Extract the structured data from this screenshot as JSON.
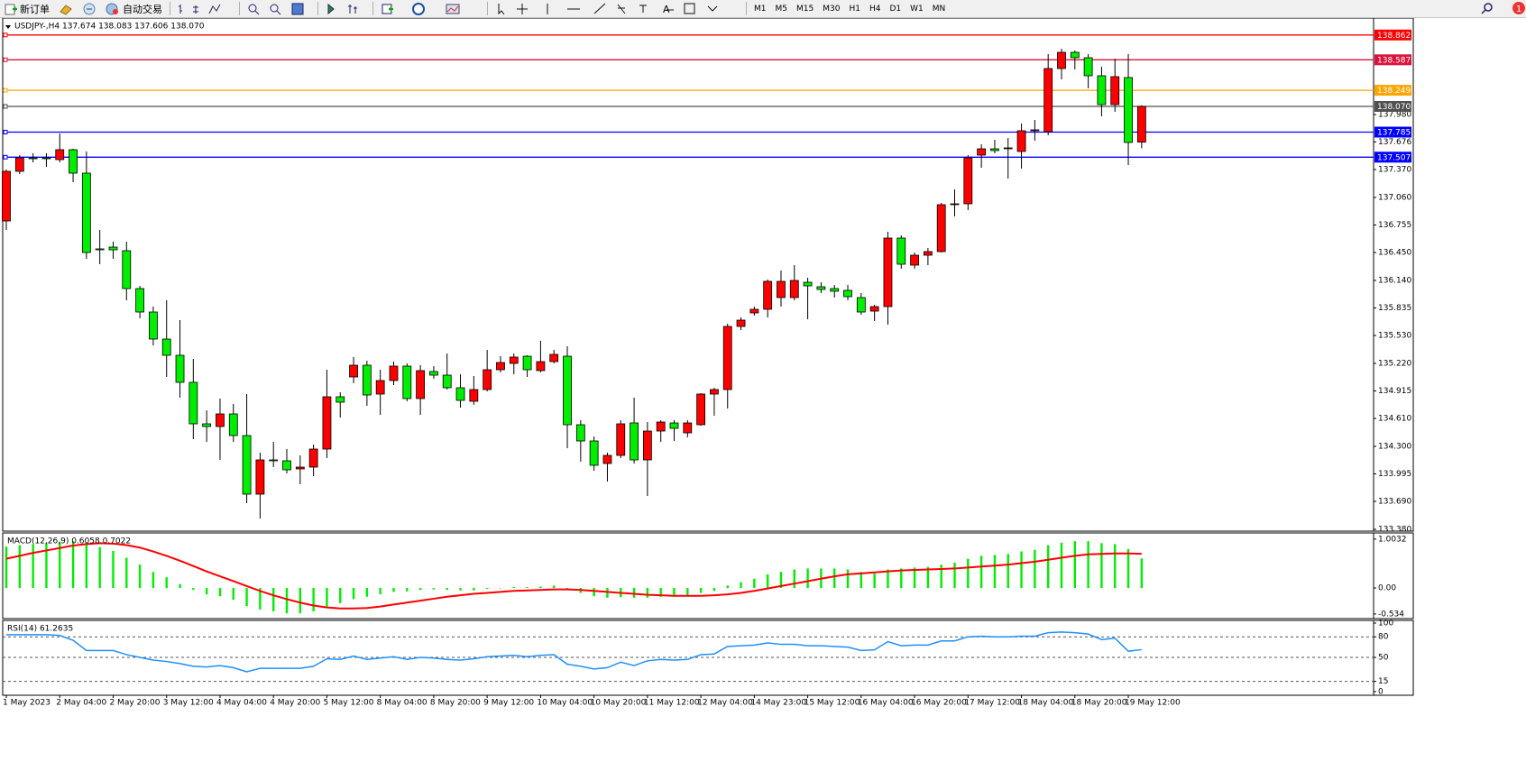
{
  "toolbar": {
    "buttons": [
      "新订单",
      "自动交易"
    ],
    "timeframes": [
      "M1",
      "M5",
      "M15",
      "M30",
      "H1",
      "H4",
      "D1",
      "W1",
      "MN"
    ],
    "badge": "1"
  },
  "chart_data": [
    {
      "type": "candlestick",
      "title": "USDJPY-,H4  137.674 138.083 137.606 138.070",
      "categories": [
        "1 May 2023",
        null,
        null,
        null,
        "2 May 04:00",
        null,
        null,
        null,
        "2 May 20:00",
        null,
        null,
        null,
        "3 May 12:00",
        null,
        null,
        null,
        "4 May 04:00",
        null,
        null,
        null,
        "4 May 20:00",
        null,
        null,
        null,
        "5 May 12:00",
        null,
        null,
        null,
        "8 May 04:00",
        null,
        null,
        null,
        "8 May 20:00",
        null,
        null,
        null,
        "9 May 12:00",
        null,
        null,
        null,
        "10 May 04:00",
        null,
        null,
        null,
        "10 May 20:00",
        null,
        null,
        null,
        "11 May 12:00",
        null,
        null,
        null,
        "12 May 04:00",
        null,
        null,
        null,
        "14 May 23:00",
        null,
        null,
        null,
        "15 May 12:00",
        null,
        null,
        null,
        "16 May 04:00",
        null,
        null,
        null,
        "16 May 20:00",
        null,
        null,
        null,
        "17 May 12:00",
        null,
        null,
        null,
        "18 May 04:00",
        null,
        null,
        null,
        "18 May 20:00",
        null,
        null,
        null,
        "19 May 12:00",
        null
      ],
      "open": [
        136.8,
        137.35,
        137.5,
        137.5,
        137.48,
        137.59,
        137.33,
        136.49,
        136.51,
        136.47,
        136.05,
        135.79,
        135.49,
        135.31,
        135.01,
        134.55,
        134.52,
        134.66,
        134.42,
        133.77,
        134.15,
        134.14,
        134.05,
        134.07,
        134.27,
        134.85,
        135.07,
        135.2,
        134.88,
        135.03,
        135.19,
        134.83,
        135.13,
        135.09,
        134.95,
        134.8,
        134.93,
        135.15,
        135.22,
        135.3,
        135.14,
        135.24,
        135.3,
        134.54,
        134.36,
        134.11,
        134.2,
        134.56,
        134.15,
        134.47,
        134.56,
        134.45,
        134.54,
        134.88,
        134.93,
        135.63,
        135.78,
        135.82,
        135.95,
        135.95,
        136.12,
        136.07,
        136.05,
        136.03,
        135.95,
        135.8,
        135.85,
        136.61,
        136.31,
        136.42,
        136.46,
        136.98,
        136.99,
        137.53,
        137.6,
        137.6,
        137.57,
        137.8,
        137.79,
        138.49,
        138.67,
        138.61,
        138.41,
        138.09,
        138.39,
        137.674
      ],
      "high": [
        137.37,
        137.53,
        137.55,
        137.55,
        137.77,
        137.6,
        137.57,
        136.7,
        136.57,
        136.57,
        136.08,
        135.85,
        135.92,
        135.7,
        135.27,
        134.7,
        134.83,
        134.77,
        134.88,
        134.23,
        134.35,
        134.27,
        134.2,
        134.32,
        135.15,
        134.9,
        135.29,
        135.25,
        135.15,
        135.24,
        135.22,
        135.2,
        135.19,
        135.33,
        135.1,
        135.08,
        135.37,
        135.3,
        135.33,
        135.31,
        135.47,
        135.37,
        135.41,
        134.59,
        134.41,
        134.23,
        134.59,
        134.84,
        134.57,
        134.59,
        134.59,
        134.59,
        134.89,
        134.95,
        135.66,
        135.73,
        135.85,
        136.15,
        136.25,
        136.31,
        136.17,
        136.12,
        136.09,
        136.09,
        136.0,
        135.87,
        136.68,
        136.64,
        136.45,
        136.5,
        137.0,
        137.15,
        137.53,
        137.65,
        137.7,
        137.72,
        137.88,
        137.92,
        138.65,
        138.71,
        138.69,
        138.65,
        138.51,
        138.6,
        138.65,
        138.083
      ],
      "low": [
        136.7,
        137.32,
        137.45,
        137.4,
        137.45,
        137.23,
        136.38,
        136.32,
        136.38,
        135.92,
        135.72,
        135.42,
        135.07,
        134.84,
        134.38,
        134.35,
        134.15,
        134.35,
        133.67,
        133.5,
        134.07,
        134.0,
        133.88,
        133.97,
        134.17,
        134.62,
        135.0,
        134.75,
        134.65,
        134.98,
        134.8,
        134.65,
        135.05,
        134.93,
        134.73,
        134.76,
        134.91,
        135.12,
        135.1,
        135.07,
        135.12,
        135.22,
        134.28,
        134.13,
        134.03,
        133.91,
        134.17,
        134.11,
        133.75,
        134.35,
        134.36,
        134.4,
        134.53,
        134.64,
        134.72,
        135.59,
        135.75,
        135.73,
        135.85,
        135.92,
        135.71,
        136.0,
        135.95,
        135.92,
        135.76,
        135.69,
        135.65,
        136.27,
        136.27,
        136.31,
        136.45,
        136.85,
        136.92,
        137.39,
        137.55,
        137.27,
        137.38,
        137.69,
        137.75,
        138.37,
        138.48,
        138.27,
        137.96,
        138.01,
        137.42,
        137.606
      ],
      "close": [
        137.35,
        137.5,
        137.49,
        137.5,
        137.59,
        137.33,
        136.45,
        136.48,
        136.48,
        136.05,
        135.79,
        135.49,
        135.31,
        135.01,
        134.55,
        134.52,
        134.66,
        134.42,
        133.77,
        134.15,
        134.14,
        134.04,
        134.07,
        134.27,
        134.85,
        134.79,
        135.2,
        134.87,
        135.03,
        135.19,
        134.83,
        135.14,
        135.09,
        134.95,
        134.81,
        134.93,
        135.15,
        135.23,
        135.29,
        135.15,
        135.24,
        135.32,
        134.54,
        134.36,
        134.09,
        134.2,
        134.55,
        134.15,
        134.47,
        134.57,
        134.5,
        134.56,
        134.88,
        134.93,
        135.63,
        135.7,
        135.82,
        136.13,
        136.13,
        136.14,
        136.08,
        136.04,
        136.02,
        135.96,
        135.79,
        135.85,
        136.61,
        136.32,
        136.42,
        136.46,
        136.98,
        136.99,
        137.5,
        137.6,
        137.58,
        137.61,
        137.8,
        137.81,
        138.49,
        138.67,
        138.61,
        138.41,
        138.09,
        138.4,
        137.67,
        138.07
      ],
      "up_color": "#ff0000",
      "down_color": "#00ee00",
      "ylim": [
        133.37,
        139.05
      ],
      "yticks": [
        {
          "value": 137.98,
          "label": "137.980"
        },
        137.676,
        {
          "value": 137.37,
          "label": "137.370"
        },
        {
          "value": 137.06,
          "label": "137.060"
        },
        136.755,
        {
          "value": 136.45,
          "label": "136.450"
        },
        {
          "value": 136.14,
          "label": "136.140"
        },
        135.835,
        {
          "value": 135.53,
          "label": "135.530"
        },
        {
          "value": 135.22,
          "label": "135.220"
        },
        134.915,
        {
          "value": 134.61,
          "label": "134.610"
        },
        {
          "value": 134.3,
          "label": "134.300"
        },
        133.995,
        {
          "value": 133.69,
          "label": "133.690"
        },
        {
          "value": 133.38,
          "label": "133.380"
        }
      ],
      "hlines": [
        {
          "value": 138.862,
          "color": "#ff0000"
        },
        {
          "value": 138.587,
          "color": "#dc143c"
        },
        {
          "value": 138.249,
          "color": "#ffa500"
        },
        {
          "value": 138.07,
          "label": "138.070",
          "color": "#505050"
        },
        {
          "value": 137.785,
          "color": "#0000ff"
        },
        {
          "value": 137.507,
          "color": "#0000ff"
        }
      ]
    },
    {
      "type": "macd",
      "title": "MACD(12,26,9) 0.6058 0.7022",
      "values": [
        0.85,
        0.88,
        0.9,
        0.92,
        0.95,
        0.96,
        0.93,
        0.84,
        0.76,
        0.62,
        0.48,
        0.33,
        0.22,
        0.08,
        -0.04,
        -0.13,
        -0.17,
        -0.24,
        -0.37,
        -0.44,
        -0.48,
        -0.52,
        -0.52,
        -0.48,
        -0.38,
        -0.31,
        -0.23,
        -0.18,
        -0.13,
        -0.08,
        -0.07,
        -0.04,
        -0.03,
        -0.04,
        -0.05,
        -0.05,
        -0.02,
        0.0,
        0.02,
        0.02,
        0.03,
        0.05,
        -0.04,
        -0.1,
        -0.17,
        -0.2,
        -0.19,
        -0.2,
        -0.2,
        -0.18,
        -0.17,
        -0.16,
        -0.1,
        -0.06,
        0.05,
        0.12,
        0.19,
        0.28,
        0.33,
        0.38,
        0.4,
        0.4,
        0.4,
        0.38,
        0.33,
        0.3,
        0.38,
        0.4,
        0.42,
        0.43,
        0.48,
        0.52,
        0.6,
        0.66,
        0.68,
        0.7,
        0.75,
        0.78,
        0.88,
        0.93,
        0.96,
        0.96,
        0.92,
        0.9,
        0.8,
        0.6058
      ],
      "signal": [
        0.6,
        0.66,
        0.72,
        0.77,
        0.82,
        0.87,
        0.9,
        0.92,
        0.91,
        0.88,
        0.83,
        0.75,
        0.66,
        0.56,
        0.45,
        0.34,
        0.24,
        0.14,
        0.04,
        -0.06,
        -0.15,
        -0.23,
        -0.3,
        -0.36,
        -0.4,
        -0.42,
        -0.42,
        -0.41,
        -0.38,
        -0.34,
        -0.3,
        -0.26,
        -0.22,
        -0.18,
        -0.15,
        -0.12,
        -0.1,
        -0.08,
        -0.06,
        -0.05,
        -0.04,
        -0.03,
        -0.03,
        -0.04,
        -0.06,
        -0.08,
        -0.1,
        -0.12,
        -0.14,
        -0.15,
        -0.16,
        -0.16,
        -0.16,
        -0.15,
        -0.13,
        -0.1,
        -0.06,
        -0.01,
        0.04,
        0.09,
        0.14,
        0.19,
        0.24,
        0.28,
        0.3,
        0.32,
        0.34,
        0.36,
        0.37,
        0.38,
        0.39,
        0.4,
        0.42,
        0.44,
        0.46,
        0.48,
        0.51,
        0.54,
        0.58,
        0.62,
        0.66,
        0.69,
        0.7,
        0.71,
        0.71,
        0.7022
      ],
      "color": "#00ee00",
      "signal_color": "#ff0000",
      "ylim": [
        -0.61,
        1.13
      ],
      "yticks": [
        1.0032,
        {
          "value": 0,
          "label": "0.00"
        },
        -0.534
      ]
    },
    {
      "type": "line",
      "title": "RSI(14) 61.2635",
      "values": [
        83,
        83,
        83,
        83,
        82,
        75,
        60,
        60,
        60,
        54,
        50,
        46,
        44,
        41,
        37,
        36,
        38,
        35,
        29,
        34,
        34,
        34,
        34,
        37,
        48,
        47,
        52,
        47,
        49,
        51,
        47,
        50,
        49,
        47,
        46,
        48,
        51,
        52,
        53,
        51,
        53,
        54,
        40,
        37,
        33,
        35,
        43,
        38,
        45,
        47,
        46,
        47,
        54,
        55,
        66,
        67,
        68,
        71,
        69,
        69,
        67,
        67,
        66,
        65,
        60,
        61,
        73,
        67,
        68,
        68,
        74,
        74,
        80,
        81,
        80,
        80,
        81,
        81,
        86,
        87,
        86,
        84,
        76,
        78,
        59,
        61.2635
      ],
      "color": "#1e90ff",
      "ylim": [
        0,
        100
      ],
      "yticks": [
        100,
        80,
        50,
        15,
        0
      ]
    }
  ]
}
